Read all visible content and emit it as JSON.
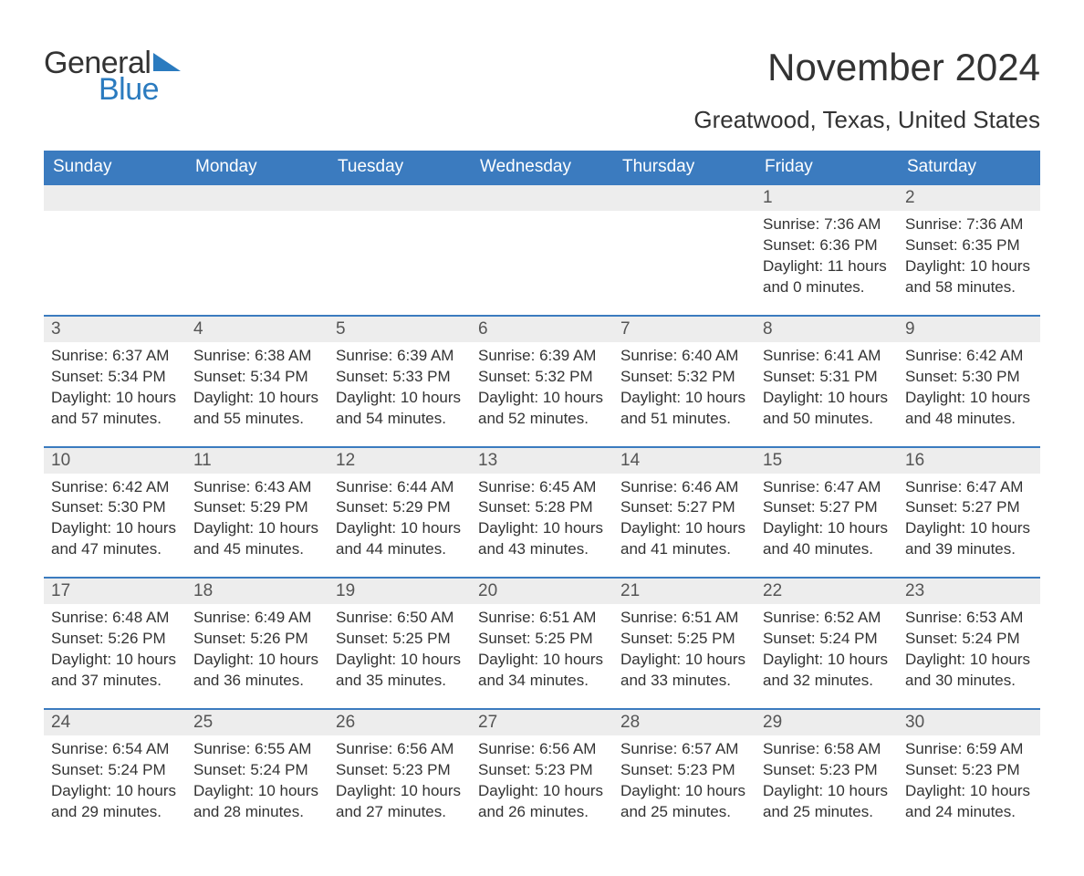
{
  "brand": {
    "word1": "General",
    "word2": "Blue",
    "accent_color": "#2b7bbf"
  },
  "title": {
    "month_year": "November 2024",
    "location": "Greatwood, Texas, United States"
  },
  "calendar": {
    "type": "month-grid",
    "header_bg": "#3b7bbf",
    "header_fg": "#ffffff",
    "daynum_bg": "#ededed",
    "row_border_color": "#3b7bbf",
    "text_color": "#333333",
    "font_family": "Arial",
    "title_fontsize": 42,
    "location_fontsize": 26,
    "dow_fontsize": 19,
    "body_fontsize": 17,
    "days_of_week": [
      "Sunday",
      "Monday",
      "Tuesday",
      "Wednesday",
      "Thursday",
      "Friday",
      "Saturday"
    ],
    "weeks": [
      [
        {
          "empty": true
        },
        {
          "empty": true
        },
        {
          "empty": true
        },
        {
          "empty": true
        },
        {
          "empty": true
        },
        {
          "n": "1",
          "sunrise": "Sunrise: 7:36 AM",
          "sunset": "Sunset: 6:36 PM",
          "daylight": "Daylight: 11 hours and 0 minutes."
        },
        {
          "n": "2",
          "sunrise": "Sunrise: 7:36 AM",
          "sunset": "Sunset: 6:35 PM",
          "daylight": "Daylight: 10 hours and 58 minutes."
        }
      ],
      [
        {
          "n": "3",
          "sunrise": "Sunrise: 6:37 AM",
          "sunset": "Sunset: 5:34 PM",
          "daylight": "Daylight: 10 hours and 57 minutes."
        },
        {
          "n": "4",
          "sunrise": "Sunrise: 6:38 AM",
          "sunset": "Sunset: 5:34 PM",
          "daylight": "Daylight: 10 hours and 55 minutes."
        },
        {
          "n": "5",
          "sunrise": "Sunrise: 6:39 AM",
          "sunset": "Sunset: 5:33 PM",
          "daylight": "Daylight: 10 hours and 54 minutes."
        },
        {
          "n": "6",
          "sunrise": "Sunrise: 6:39 AM",
          "sunset": "Sunset: 5:32 PM",
          "daylight": "Daylight: 10 hours and 52 minutes."
        },
        {
          "n": "7",
          "sunrise": "Sunrise: 6:40 AM",
          "sunset": "Sunset: 5:32 PM",
          "daylight": "Daylight: 10 hours and 51 minutes."
        },
        {
          "n": "8",
          "sunrise": "Sunrise: 6:41 AM",
          "sunset": "Sunset: 5:31 PM",
          "daylight": "Daylight: 10 hours and 50 minutes."
        },
        {
          "n": "9",
          "sunrise": "Sunrise: 6:42 AM",
          "sunset": "Sunset: 5:30 PM",
          "daylight": "Daylight: 10 hours and 48 minutes."
        }
      ],
      [
        {
          "n": "10",
          "sunrise": "Sunrise: 6:42 AM",
          "sunset": "Sunset: 5:30 PM",
          "daylight": "Daylight: 10 hours and 47 minutes."
        },
        {
          "n": "11",
          "sunrise": "Sunrise: 6:43 AM",
          "sunset": "Sunset: 5:29 PM",
          "daylight": "Daylight: 10 hours and 45 minutes."
        },
        {
          "n": "12",
          "sunrise": "Sunrise: 6:44 AM",
          "sunset": "Sunset: 5:29 PM",
          "daylight": "Daylight: 10 hours and 44 minutes."
        },
        {
          "n": "13",
          "sunrise": "Sunrise: 6:45 AM",
          "sunset": "Sunset: 5:28 PM",
          "daylight": "Daylight: 10 hours and 43 minutes."
        },
        {
          "n": "14",
          "sunrise": "Sunrise: 6:46 AM",
          "sunset": "Sunset: 5:27 PM",
          "daylight": "Daylight: 10 hours and 41 minutes."
        },
        {
          "n": "15",
          "sunrise": "Sunrise: 6:47 AM",
          "sunset": "Sunset: 5:27 PM",
          "daylight": "Daylight: 10 hours and 40 minutes."
        },
        {
          "n": "16",
          "sunrise": "Sunrise: 6:47 AM",
          "sunset": "Sunset: 5:27 PM",
          "daylight": "Daylight: 10 hours and 39 minutes."
        }
      ],
      [
        {
          "n": "17",
          "sunrise": "Sunrise: 6:48 AM",
          "sunset": "Sunset: 5:26 PM",
          "daylight": "Daylight: 10 hours and 37 minutes."
        },
        {
          "n": "18",
          "sunrise": "Sunrise: 6:49 AM",
          "sunset": "Sunset: 5:26 PM",
          "daylight": "Daylight: 10 hours and 36 minutes."
        },
        {
          "n": "19",
          "sunrise": "Sunrise: 6:50 AM",
          "sunset": "Sunset: 5:25 PM",
          "daylight": "Daylight: 10 hours and 35 minutes."
        },
        {
          "n": "20",
          "sunrise": "Sunrise: 6:51 AM",
          "sunset": "Sunset: 5:25 PM",
          "daylight": "Daylight: 10 hours and 34 minutes."
        },
        {
          "n": "21",
          "sunrise": "Sunrise: 6:51 AM",
          "sunset": "Sunset: 5:25 PM",
          "daylight": "Daylight: 10 hours and 33 minutes."
        },
        {
          "n": "22",
          "sunrise": "Sunrise: 6:52 AM",
          "sunset": "Sunset: 5:24 PM",
          "daylight": "Daylight: 10 hours and 32 minutes."
        },
        {
          "n": "23",
          "sunrise": "Sunrise: 6:53 AM",
          "sunset": "Sunset: 5:24 PM",
          "daylight": "Daylight: 10 hours and 30 minutes."
        }
      ],
      [
        {
          "n": "24",
          "sunrise": "Sunrise: 6:54 AM",
          "sunset": "Sunset: 5:24 PM",
          "daylight": "Daylight: 10 hours and 29 minutes."
        },
        {
          "n": "25",
          "sunrise": "Sunrise: 6:55 AM",
          "sunset": "Sunset: 5:24 PM",
          "daylight": "Daylight: 10 hours and 28 minutes."
        },
        {
          "n": "26",
          "sunrise": "Sunrise: 6:56 AM",
          "sunset": "Sunset: 5:23 PM",
          "daylight": "Daylight: 10 hours and 27 minutes."
        },
        {
          "n": "27",
          "sunrise": "Sunrise: 6:56 AM",
          "sunset": "Sunset: 5:23 PM",
          "daylight": "Daylight: 10 hours and 26 minutes."
        },
        {
          "n": "28",
          "sunrise": "Sunrise: 6:57 AM",
          "sunset": "Sunset: 5:23 PM",
          "daylight": "Daylight: 10 hours and 25 minutes."
        },
        {
          "n": "29",
          "sunrise": "Sunrise: 6:58 AM",
          "sunset": "Sunset: 5:23 PM",
          "daylight": "Daylight: 10 hours and 25 minutes."
        },
        {
          "n": "30",
          "sunrise": "Sunrise: 6:59 AM",
          "sunset": "Sunset: 5:23 PM",
          "daylight": "Daylight: 10 hours and 24 minutes."
        }
      ]
    ]
  }
}
